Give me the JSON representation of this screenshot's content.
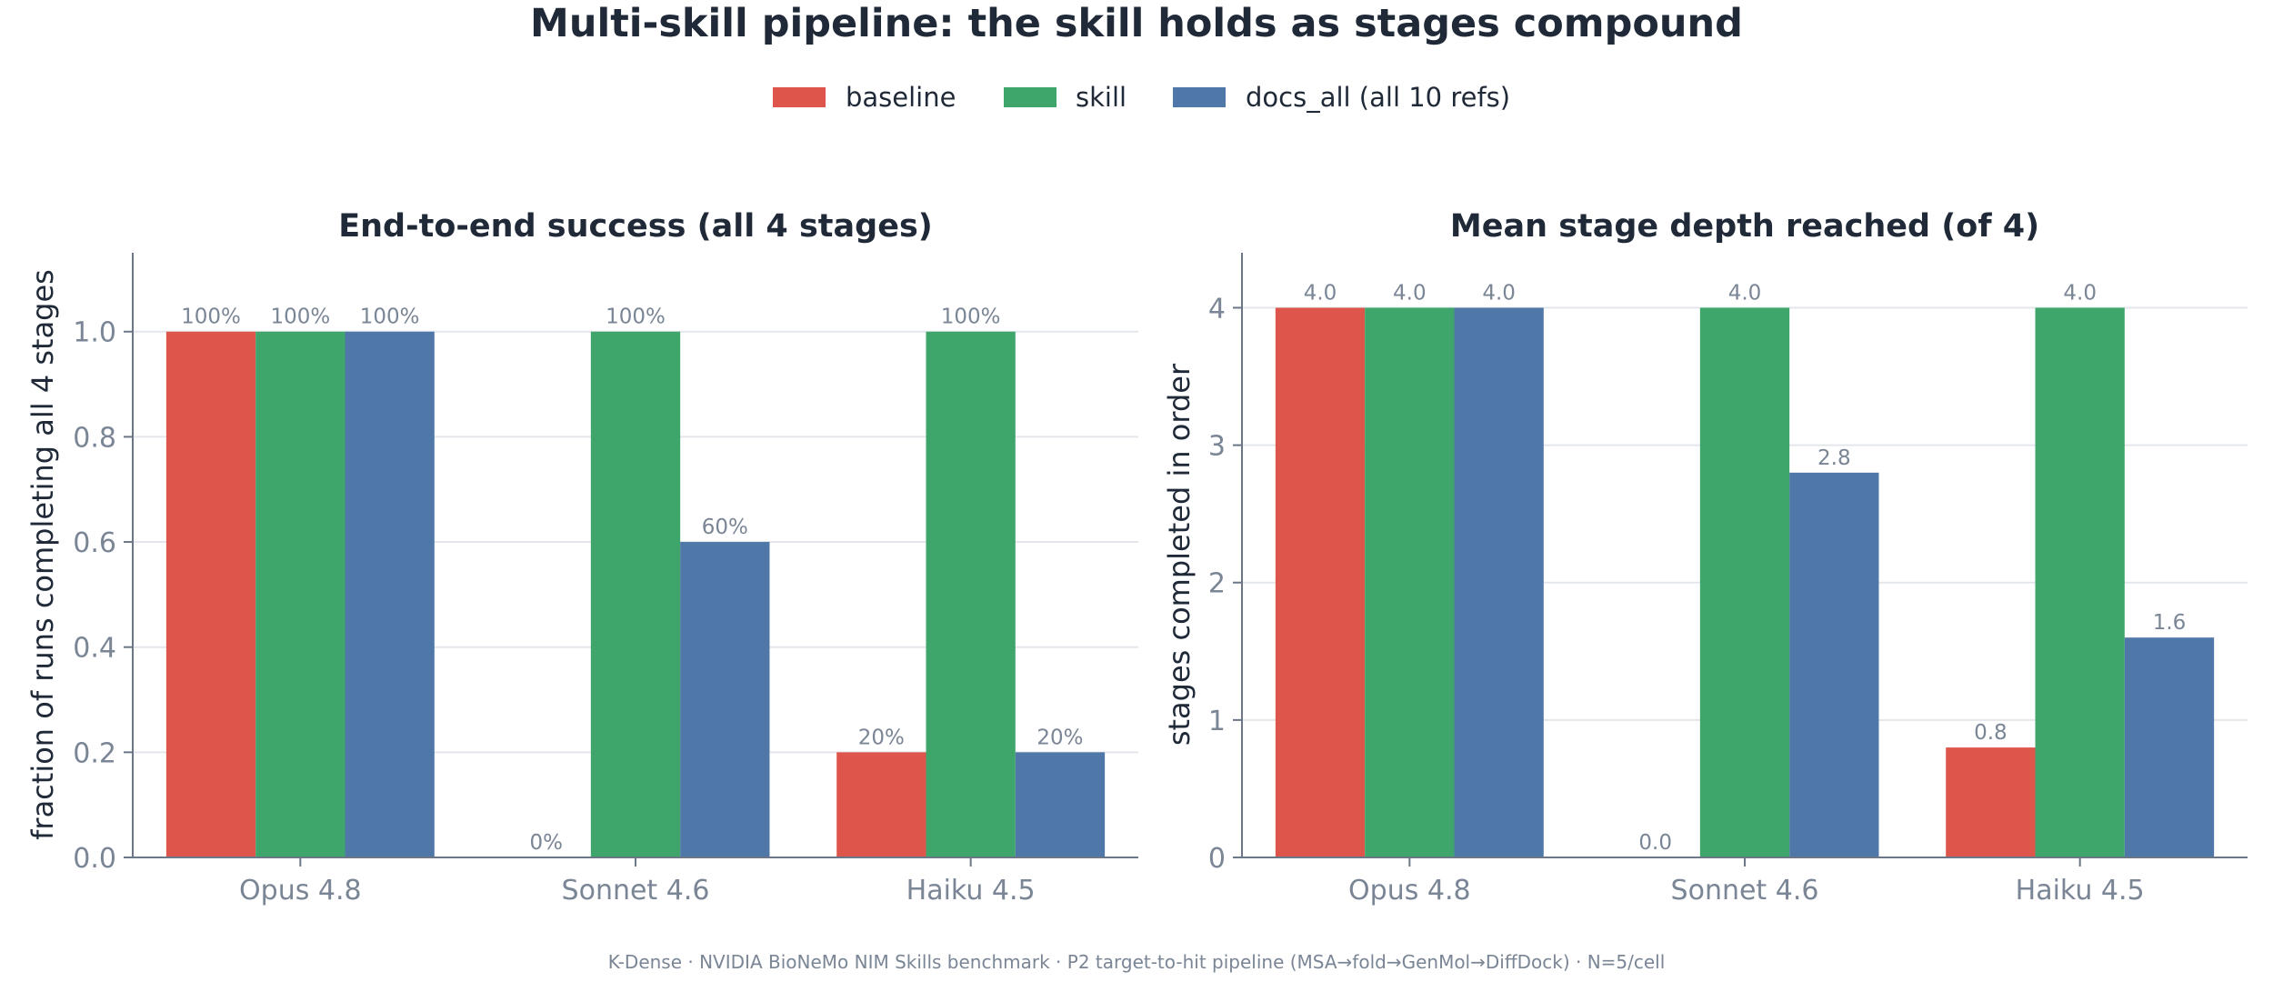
{
  "figure": {
    "title": "Multi-skill pipeline: the skill holds as stages compound",
    "footer": "K-Dense  ·  NVIDIA BioNeMo NIM Skills benchmark  ·  P2 target-to-hit pipeline (MSA→fold→GenMol→DiffDock)  ·  N=5/cell"
  },
  "legend": [
    {
      "name": "baseline",
      "color": "#de564b"
    },
    {
      "name": "skill",
      "color": "#3ea66a"
    },
    {
      "name": "docs_all (all 10 refs)",
      "color": "#4f77a8"
    }
  ],
  "chart_data": [
    {
      "type": "bar",
      "title": "End-to-end success (all 4 stages)",
      "ylabel": "fraction of runs completing all 4 stages",
      "xlabel": "",
      "categories": [
        "Opus 4.8",
        "Sonnet 4.6",
        "Haiku 4.5"
      ],
      "ylim": [
        0,
        1.15
      ],
      "yticks": [
        0.0,
        0.2,
        0.4,
        0.6,
        0.8,
        1.0
      ],
      "ytick_labels": [
        "0.0",
        "0.2",
        "0.4",
        "0.6",
        "0.8",
        "1.0"
      ],
      "grid": true,
      "series": [
        {
          "name": "baseline",
          "values": [
            1.0,
            0.0,
            0.2
          ],
          "labels": [
            "100%",
            "0%",
            "20%"
          ]
        },
        {
          "name": "skill",
          "values": [
            1.0,
            1.0,
            1.0
          ],
          "labels": [
            "100%",
            "100%",
            "100%"
          ]
        },
        {
          "name": "docs_all (all 10 refs)",
          "values": [
            1.0,
            0.6,
            0.2
          ],
          "labels": [
            "100%",
            "60%",
            "20%"
          ]
        }
      ]
    },
    {
      "type": "bar",
      "title": "Mean stage depth reached (of 4)",
      "ylabel": "stages completed in order",
      "xlabel": "",
      "categories": [
        "Opus 4.8",
        "Sonnet 4.6",
        "Haiku 4.5"
      ],
      "ylim": [
        0,
        4.4
      ],
      "yticks": [
        0,
        1,
        2,
        3,
        4
      ],
      "ytick_labels": [
        "0",
        "1",
        "2",
        "3",
        "4"
      ],
      "grid": true,
      "series": [
        {
          "name": "baseline",
          "values": [
            4.0,
            0.0,
            0.8
          ],
          "labels": [
            "4.0",
            "0.0",
            "0.8"
          ]
        },
        {
          "name": "skill",
          "values": [
            4.0,
            4.0,
            4.0
          ],
          "labels": [
            "4.0",
            "4.0",
            "4.0"
          ]
        },
        {
          "name": "docs_all (all 10 refs)",
          "values": [
            4.0,
            2.8,
            1.6
          ],
          "labels": [
            "4.0",
            "2.8",
            "1.6"
          ]
        }
      ]
    }
  ]
}
